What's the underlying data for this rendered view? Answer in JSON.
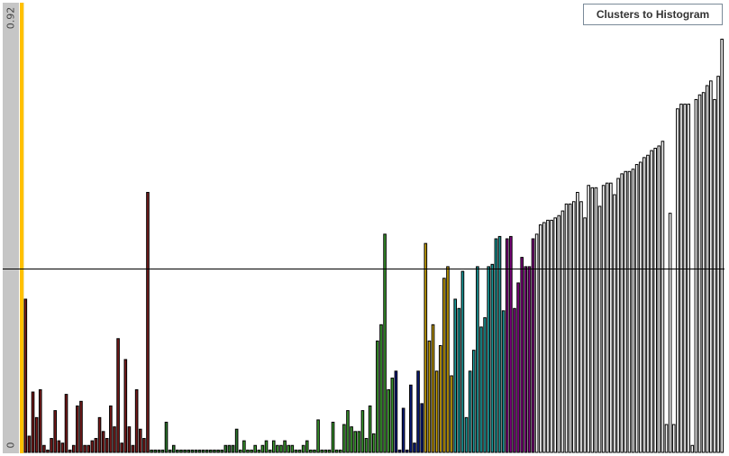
{
  "button": {
    "histogram_label": "Clusters to Histogram"
  },
  "colors": {
    "axis_strip": "#c6c6c6",
    "selector": "#ffc000",
    "threshold_line": "#000000"
  },
  "chart_data": {
    "type": "bar",
    "title": "",
    "xlabel": "",
    "ylabel": "",
    "ylim": [
      0,
      0.92
    ],
    "tick_labels": {
      "min": "0",
      "max": "0.92"
    },
    "threshold": 0.395,
    "grid": false,
    "legend": "none",
    "values": [
      0.33,
      0.035,
      0.13,
      0.075,
      0.135,
      0.015,
      0.005,
      0.03,
      0.09,
      0.025,
      0.02,
      0.125,
      0.005,
      0.015,
      0.1,
      0.11,
      0.015,
      0.015,
      0.025,
      0.03,
      0.075,
      0.045,
      0.03,
      0.1,
      0.055,
      0.245,
      0.02,
      0.2,
      0.055,
      0.015,
      0.135,
      0.05,
      0.03,
      0.56,
      0.005,
      0.005,
      0.005,
      0.005,
      0.065,
      0.005,
      0.015,
      0.005,
      0.005,
      0.005,
      0.005,
      0.005,
      0.005,
      0.005,
      0.005,
      0.005,
      0.005,
      0.005,
      0.005,
      0.005,
      0.015,
      0.015,
      0.015,
      0.05,
      0.005,
      0.025,
      0.005,
      0.005,
      0.015,
      0.005,
      0.015,
      0.025,
      0.005,
      0.025,
      0.015,
      0.015,
      0.025,
      0.015,
      0.015,
      0.005,
      0.005,
      0.015,
      0.025,
      0.005,
      0.005,
      0.07,
      0.005,
      0.005,
      0.005,
      0.065,
      0.005,
      0.005,
      0.06,
      0.09,
      0.055,
      0.045,
      0.045,
      0.09,
      0.03,
      0.1,
      0.04,
      0.24,
      0.275,
      0.47,
      0.135,
      0.16,
      0.175,
      0.005,
      0.095,
      0.005,
      0.145,
      0.02,
      0.175,
      0.105,
      0.45,
      0.24,
      0.275,
      0.175,
      0.23,
      0.375,
      0.4,
      0.165,
      0.33,
      0.31,
      0.39,
      0.075,
      0.175,
      0.22,
      0.4,
      0.27,
      0.29,
      0.4,
      0.405,
      0.46,
      0.465,
      0.305,
      0.46,
      0.465,
      0.31,
      0.365,
      0.42,
      0.4,
      0.4,
      0.46,
      0.47,
      0.49,
      0.495,
      0.5,
      0.5,
      0.505,
      0.51,
      0.52,
      0.535,
      0.535,
      0.54,
      0.56,
      0.54,
      0.505,
      0.575,
      0.57,
      0.57,
      0.53,
      0.575,
      0.58,
      0.58,
      0.555,
      0.59,
      0.6,
      0.605,
      0.605,
      0.61,
      0.62,
      0.625,
      0.635,
      0.64,
      0.65,
      0.655,
      0.66,
      0.67,
      0.06,
      0.515,
      0.06,
      0.74,
      0.75,
      0.75,
      0.75,
      0.015,
      0.76,
      0.77,
      0.775,
      0.79,
      0.8,
      0.76,
      0.81,
      0.89
    ]
  }
}
